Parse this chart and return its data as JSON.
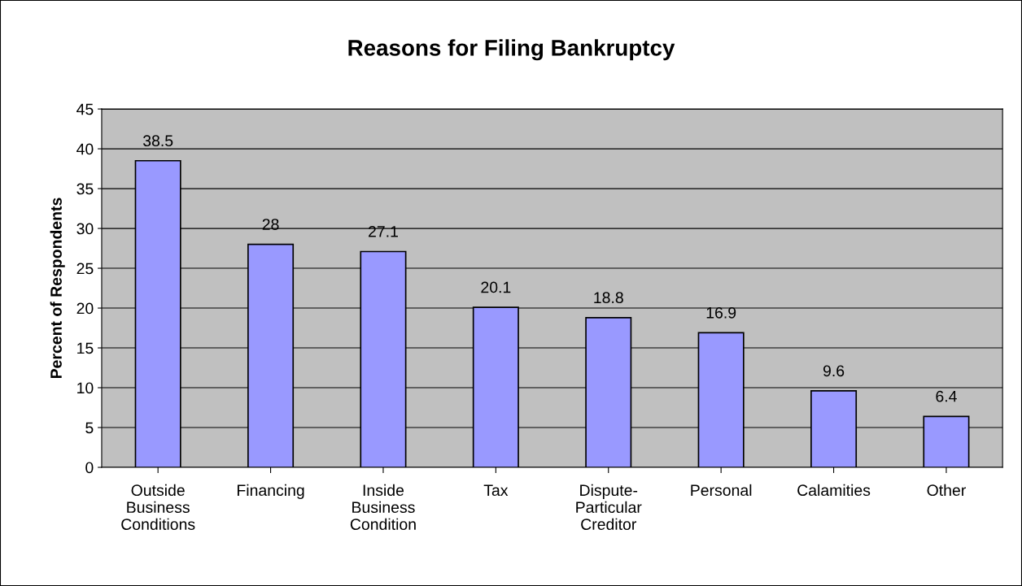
{
  "chart_data": {
    "type": "bar",
    "title": "Reasons for Filing Bankruptcy",
    "ylabel": "Percent of Respondents",
    "categories": [
      "Outside Business Conditions",
      "Financing",
      "Inside Business Condition",
      "Tax",
      "Dispute-Particular Creditor",
      "Personal",
      "Calamities",
      "Other"
    ],
    "values": [
      38.5,
      28,
      27.1,
      20.1,
      18.8,
      16.9,
      9.6,
      6.4
    ],
    "color": "#9999ff",
    "data_labels": true,
    "grid": "y",
    "legend": false,
    "ylim": [
      0,
      45
    ],
    "yticks": [
      0,
      5,
      10,
      15,
      20,
      25,
      30,
      35,
      40,
      45
    ]
  }
}
